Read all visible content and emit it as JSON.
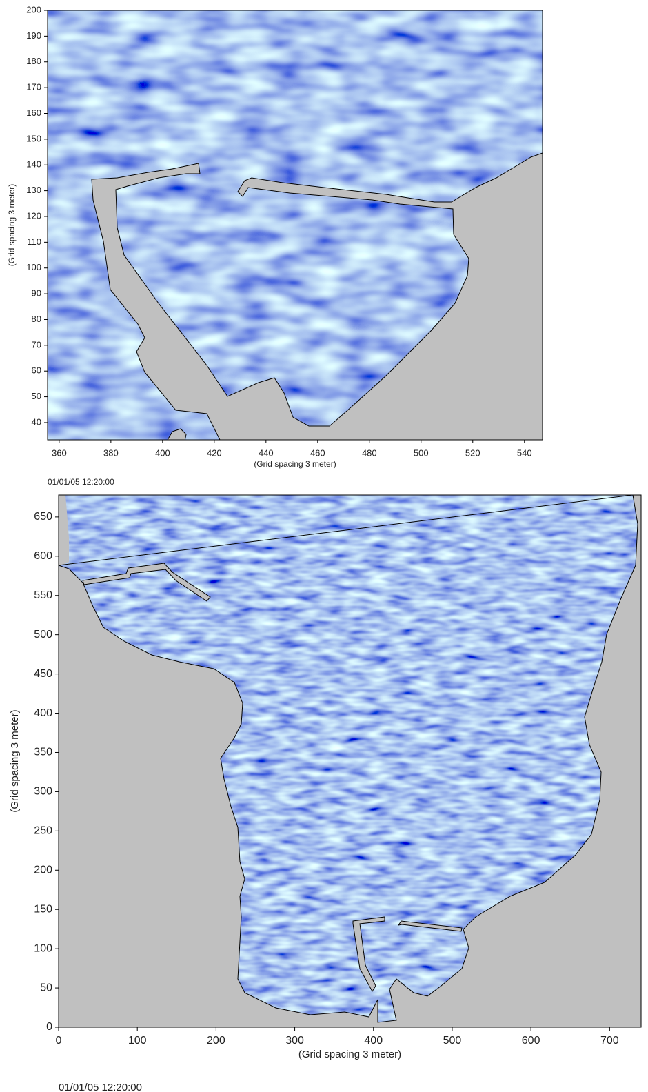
{
  "chart_data": [
    {
      "type": "heatmap",
      "x_label": "(Grid spacing 3 meter)",
      "y_label": "(Grid spacing 3 meter)",
      "timestamp": "01/01/05 12:20:00",
      "xlim": [
        355.5,
        547
      ],
      "ylim": [
        33.3,
        200
      ],
      "xticks": [
        360,
        380,
        400,
        420,
        440,
        460,
        480,
        500,
        520,
        540
      ],
      "yticks": [
        40,
        50,
        60,
        70,
        80,
        90,
        100,
        110,
        120,
        130,
        140,
        150,
        160,
        170,
        180,
        190,
        200
      ]
    },
    {
      "type": "heatmap",
      "x_label": "(Grid spacing 3 meter)",
      "y_label": "(Grid spacing 3 meter)",
      "timestamp": "01/01/05 12:20:00",
      "xlim": [
        0,
        740
      ],
      "ylim": [
        0,
        678
      ],
      "xticks": [
        0,
        100,
        200,
        300,
        400,
        500,
        600,
        700
      ],
      "yticks": [
        0,
        50,
        100,
        150,
        200,
        250,
        300,
        350,
        400,
        450,
        500,
        550,
        600,
        650
      ]
    }
  ]
}
